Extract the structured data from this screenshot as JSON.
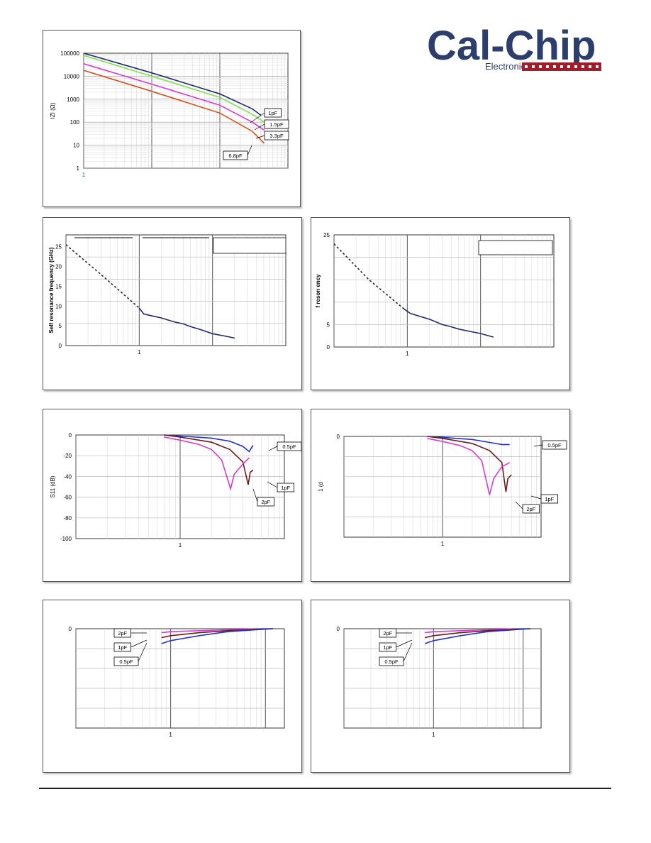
{
  "logo": {
    "name": "Cal-Chip",
    "subtitle": "Electronics Inc.",
    "colors": {
      "primary": "#2c3e6b",
      "accent": "#a01c2a"
    }
  },
  "chart_data": [
    {
      "type": "line",
      "x_scale": "log",
      "y_scale": "log",
      "ylabel": "IZI (Ω)",
      "y_ticks": [
        "100000",
        "10000",
        "1000",
        "100",
        "10",
        "1"
      ],
      "x_ticks": [
        "1"
      ],
      "ylim": [
        1,
        100000
      ],
      "series": [
        {
          "name": "1pF",
          "color": "#1f2a6b",
          "x": [
            1,
            10,
            100,
            300,
            400
          ],
          "y": [
            100000,
            14000,
            1700,
            380,
            200
          ]
        },
        {
          "name": "1.5pF",
          "color": "#7fe04a",
          "x": [
            1,
            10,
            100,
            300,
            450
          ],
          "y": [
            80000,
            10000,
            1200,
            220,
            100
          ]
        },
        {
          "name": "3.3pF",
          "color": "#d43ad4",
          "x": [
            1,
            10,
            100,
            300,
            450
          ],
          "y": [
            35000,
            4500,
            550,
            100,
            45
          ]
        },
        {
          "name": "6.8pF",
          "color": "#d4501a",
          "x": [
            1,
            10,
            100,
            300,
            450
          ],
          "y": [
            18000,
            2200,
            250,
            40,
            12
          ]
        }
      ]
    },
    {
      "type": "line",
      "x_scale": "log",
      "ylabel": "Self resonance frequency (GHz)",
      "y_ticks": [
        "25",
        "20",
        "15",
        "10",
        "5",
        "0"
      ],
      "x_ticks": [
        "1"
      ],
      "ylim": [
        0,
        28
      ],
      "series": [
        {
          "style": "dashed",
          "color": "#222222",
          "x": [
            0.1,
            0.3,
            1.0
          ],
          "y": [
            25.5,
            18,
            9.5
          ]
        },
        {
          "color": "#1f2a6b",
          "x": [
            1.0,
            1.15,
            1.5,
            2,
            3,
            4,
            5,
            7,
            10,
            14,
            20
          ],
          "y": [
            9.5,
            8,
            7.5,
            7,
            6,
            5.5,
            4.8,
            4,
            3,
            2.5,
            1.9
          ]
        }
      ]
    },
    {
      "type": "line",
      "x_scale": "log",
      "ylabel": "f reson ency",
      "y_ticks": [
        "25",
        "5",
        "0"
      ],
      "x_ticks": [
        "1"
      ],
      "ylim": [
        0,
        25
      ],
      "series": [
        {
          "style": "dashed",
          "color": "#222222",
          "x": [
            0.1,
            0.3,
            0.9
          ],
          "y": [
            23,
            15,
            8.5
          ]
        },
        {
          "color": "#1f2a6b",
          "x": [
            0.9,
            1.1,
            1.5,
            2,
            3,
            4,
            5,
            7,
            10,
            15
          ],
          "y": [
            8.5,
            7.5,
            6.8,
            6.2,
            5,
            4.5,
            4,
            3.5,
            3,
            2.2
          ]
        }
      ]
    },
    {
      "type": "line",
      "x_scale": "log",
      "ylabel": "S11 (dB)",
      "y_ticks": [
        "0",
        "-20",
        "-40",
        "-60",
        "-80",
        "-100"
      ],
      "x_ticks": [
        "1"
      ],
      "ylim": [
        -100,
        0
      ],
      "series": [
        {
          "name": "0.5pF",
          "color": "#2233cc",
          "x": [
            0.7,
            1,
            2,
            3,
            4,
            4.6,
            5
          ],
          "y": [
            0,
            -1,
            -3,
            -6,
            -11,
            -16,
            -10
          ]
        },
        {
          "name": "1pF",
          "color": "#6b1a1a",
          "x": [
            0.7,
            1,
            2,
            3,
            4,
            4.5,
            4.7,
            5
          ],
          "y": [
            0,
            -2,
            -7,
            -14,
            -26,
            -48,
            -36,
            -34
          ]
        },
        {
          "name": "2pF",
          "color": "#d43ad4",
          "x": [
            0.7,
            1,
            1.5,
            2,
            2.5,
            3.05,
            3.3,
            4,
            4.6
          ],
          "y": [
            -2,
            -5,
            -9,
            -14,
            -24,
            -52,
            -38,
            -28,
            -22
          ]
        }
      ]
    },
    {
      "type": "line",
      "x_scale": "log",
      "ylabel": "1 (d",
      "y_ticks": [
        "0"
      ],
      "x_ticks": [
        "1"
      ],
      "ylim": [
        -100,
        0
      ],
      "series": [
        {
          "name": "0.5pF",
          "color": "#2233cc",
          "x": [
            0.7,
            1,
            2,
            3,
            4,
            4.8
          ],
          "y": [
            0,
            -1,
            -3,
            -6,
            -8,
            -8
          ]
        },
        {
          "name": "1pF",
          "color": "#6b1a1a",
          "x": [
            0.7,
            1,
            2,
            3,
            4,
            4.4,
            4.6,
            5
          ],
          "y": [
            0,
            -2,
            -7,
            -14,
            -26,
            -55,
            -42,
            -38
          ]
        },
        {
          "name": "2pF",
          "color": "#d43ad4",
          "x": [
            0.7,
            1,
            1.5,
            2,
            2.5,
            3.0,
            3.3,
            4,
            4.8
          ],
          "y": [
            -2,
            -5,
            -9,
            -14,
            -24,
            -58,
            -42,
            -30,
            -26
          ]
        }
      ]
    },
    {
      "type": "line",
      "x_scale": "log",
      "y_ticks": [
        "0"
      ],
      "x_ticks": [
        "1"
      ],
      "ylim": [
        -5,
        0
      ],
      "series": [
        {
          "name": "2pF",
          "color": "#d43ad4",
          "x": [
            0.8,
            1,
            2,
            4,
            8,
            12
          ],
          "y": [
            -0.2,
            -0.15,
            -0.1,
            -0.05,
            0,
            0
          ]
        },
        {
          "name": "1pF",
          "color": "#6b1a1a",
          "x": [
            0.8,
            1,
            2,
            4,
            8,
            12
          ],
          "y": [
            -0.45,
            -0.35,
            -0.2,
            -0.1,
            -0.03,
            0
          ]
        },
        {
          "name": "0.5pF",
          "color": "#2233cc",
          "x": [
            0.8,
            1,
            2,
            4,
            8,
            12
          ],
          "y": [
            -0.75,
            -0.6,
            -0.35,
            -0.15,
            -0.05,
            0
          ]
        }
      ]
    },
    {
      "type": "line",
      "x_scale": "log",
      "y_ticks": [
        "0"
      ],
      "x_ticks": [
        "1"
      ],
      "ylim": [
        -5,
        0
      ],
      "series": [
        {
          "name": "2pF",
          "color": "#d43ad4",
          "x": [
            0.8,
            1,
            2,
            4,
            8,
            12
          ],
          "y": [
            -0.2,
            -0.15,
            -0.1,
            -0.05,
            0,
            0
          ]
        },
        {
          "name": "1pF",
          "color": "#6b1a1a",
          "x": [
            0.8,
            1,
            2,
            4,
            8,
            12
          ],
          "y": [
            -0.45,
            -0.35,
            -0.2,
            -0.1,
            -0.03,
            0
          ]
        },
        {
          "name": "0.5pF",
          "color": "#2233cc",
          "x": [
            0.8,
            1,
            2,
            4,
            8,
            12
          ],
          "y": [
            -0.75,
            -0.6,
            -0.35,
            -0.15,
            -0.05,
            0
          ]
        }
      ]
    }
  ]
}
